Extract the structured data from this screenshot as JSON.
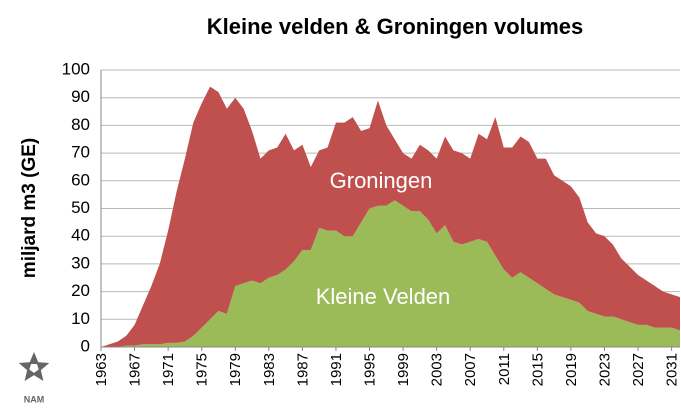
{
  "chart_data": {
    "type": "stacked-area",
    "title": "Kleine velden & Groningen volumes",
    "y_label": "miljard m3 (GE)",
    "logo_text": "NAM",
    "x": [
      1963,
      1964,
      1965,
      1966,
      1967,
      1968,
      1969,
      1970,
      1971,
      1972,
      1973,
      1974,
      1975,
      1976,
      1977,
      1978,
      1979,
      1980,
      1981,
      1982,
      1983,
      1984,
      1985,
      1986,
      1987,
      1988,
      1989,
      1990,
      1991,
      1992,
      1993,
      1994,
      1995,
      1996,
      1997,
      1998,
      1999,
      2000,
      2001,
      2002,
      2003,
      2004,
      2005,
      2006,
      2007,
      2008,
      2009,
      2010,
      2011,
      2012,
      2013,
      2014,
      2015,
      2016,
      2017,
      2018,
      2019,
      2020,
      2021,
      2022,
      2023,
      2024,
      2025,
      2026,
      2027,
      2028,
      2029,
      2030,
      2031,
      2032
    ],
    "series": [
      {
        "name": "Kleine Velden",
        "color": "#9bbb59",
        "values": [
          0,
          0,
          0,
          0.5,
          0.5,
          1,
          1,
          1,
          1.5,
          1.5,
          2,
          4,
          7,
          10,
          13,
          12,
          22,
          23,
          24,
          23,
          25,
          26,
          28,
          31,
          35,
          35,
          43,
          42,
          42,
          40,
          40,
          45,
          50,
          51,
          51,
          53,
          51,
          49,
          49,
          46,
          41,
          44,
          38,
          37,
          38,
          39,
          38,
          33,
          28,
          25,
          27,
          25,
          23,
          21,
          19,
          18,
          17,
          16,
          13,
          12,
          11,
          11,
          10,
          9,
          8,
          8,
          7,
          7,
          7,
          6
        ]
      },
      {
        "name": "Groningen",
        "color": "#c0504d",
        "values": [
          0,
          1,
          2,
          3.5,
          7.5,
          14,
          21,
          29,
          40.5,
          54.5,
          66,
          77,
          81,
          84,
          79,
          74,
          68,
          63,
          54,
          45,
          46,
          46,
          49,
          40,
          38,
          30,
          28,
          30,
          39,
          41,
          43,
          33,
          29,
          38,
          29,
          22,
          19,
          19,
          24,
          25,
          27,
          32,
          33,
          33,
          30,
          38,
          37,
          50,
          44,
          47,
          49,
          49,
          45,
          47,
          43,
          42,
          41,
          38,
          32,
          29,
          29,
          26,
          22,
          20,
          18,
          16,
          15,
          13,
          12,
          12
        ]
      }
    ],
    "xlim": [
      1963,
      2032
    ],
    "xticks": [
      1963,
      1967,
      1971,
      1975,
      1979,
      1983,
      1987,
      1991,
      1995,
      1999,
      2003,
      2007,
      2011,
      2015,
      2019,
      2023,
      2027,
      2031
    ],
    "ylim": [
      0,
      100
    ],
    "yticks": [
      0,
      10,
      20,
      30,
      40,
      50,
      60,
      70,
      80,
      90,
      100
    ],
    "grid": true
  }
}
